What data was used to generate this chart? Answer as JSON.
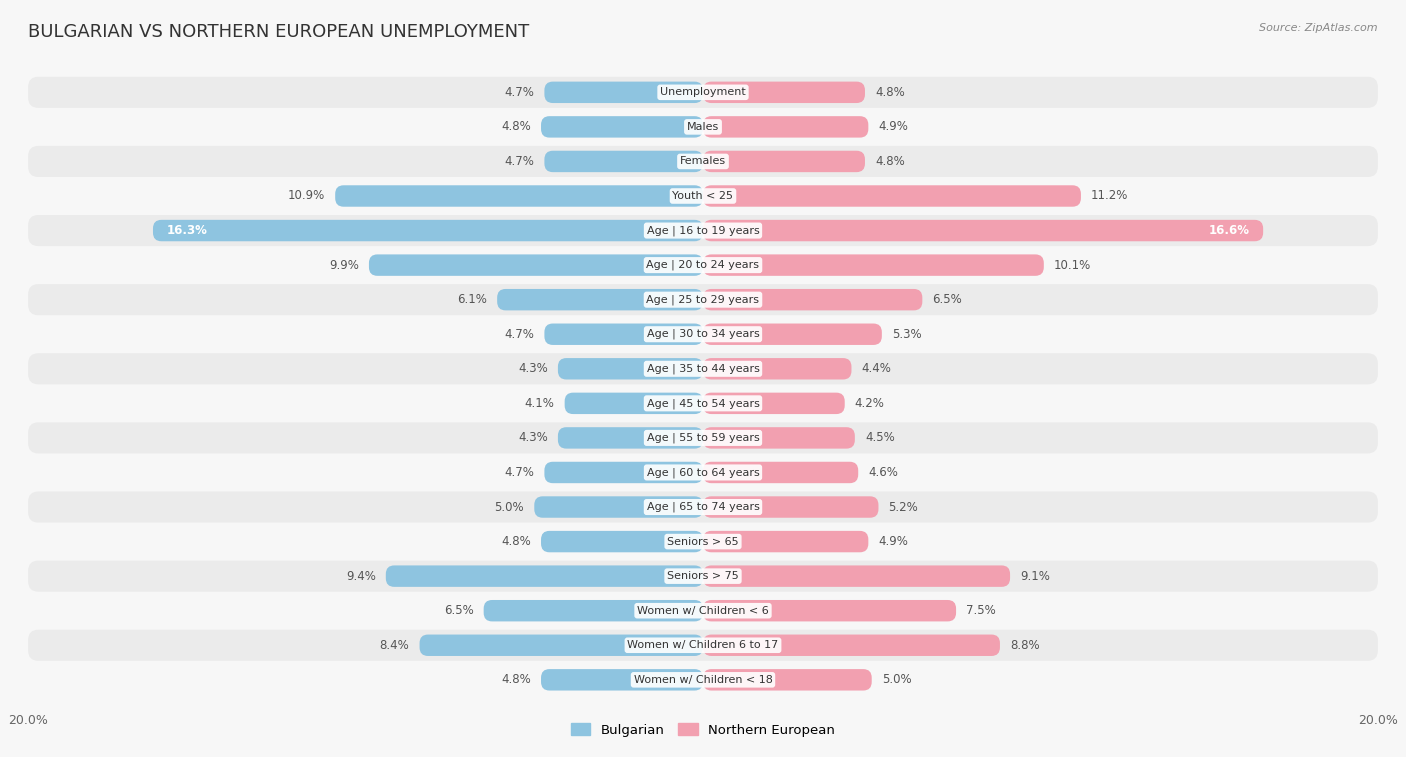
{
  "title": "BULGARIAN VS NORTHERN EUROPEAN UNEMPLOYMENT",
  "source": "Source: ZipAtlas.com",
  "categories": [
    "Unemployment",
    "Males",
    "Females",
    "Youth < 25",
    "Age | 16 to 19 years",
    "Age | 20 to 24 years",
    "Age | 25 to 29 years",
    "Age | 30 to 34 years",
    "Age | 35 to 44 years",
    "Age | 45 to 54 years",
    "Age | 55 to 59 years",
    "Age | 60 to 64 years",
    "Age | 65 to 74 years",
    "Seniors > 65",
    "Seniors > 75",
    "Women w/ Children < 6",
    "Women w/ Children 6 to 17",
    "Women w/ Children < 18"
  ],
  "bulgarian": [
    4.7,
    4.8,
    4.7,
    10.9,
    16.3,
    9.9,
    6.1,
    4.7,
    4.3,
    4.1,
    4.3,
    4.7,
    5.0,
    4.8,
    9.4,
    6.5,
    8.4,
    4.8
  ],
  "northern_european": [
    4.8,
    4.9,
    4.8,
    11.2,
    16.6,
    10.1,
    6.5,
    5.3,
    4.4,
    4.2,
    4.5,
    4.6,
    5.2,
    4.9,
    9.1,
    7.5,
    8.8,
    5.0
  ],
  "bulgarian_color": "#8ec4e0",
  "northern_european_color": "#f2a0b0",
  "row_color_odd": "#ebebeb",
  "row_color_even": "#f7f7f7",
  "background_color": "#f7f7f7",
  "title_fontsize": 13,
  "axis_max": 20.0,
  "legend_bulgarian": "Bulgarian",
  "legend_northern_european": "Northern European",
  "value_label_fontsize": 8.5,
  "category_fontsize": 8.0
}
